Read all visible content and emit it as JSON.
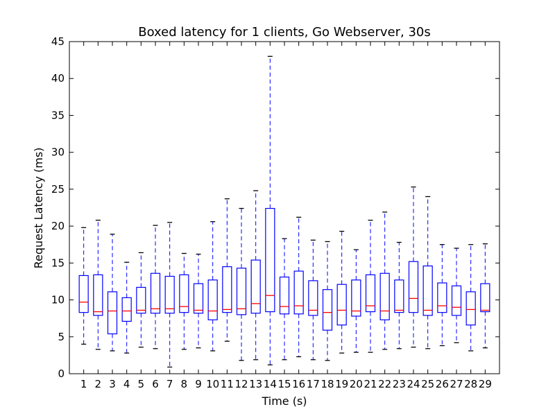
{
  "chart_data": {
    "type": "box",
    "title": "Boxed latency for 1 clients, Go Webserver, 30s",
    "xlabel": "Time (s)",
    "ylabel": "Request Latency (ms)",
    "ylim": [
      0,
      45
    ],
    "yticks": [
      0,
      5,
      10,
      15,
      20,
      25,
      30,
      35,
      40,
      45
    ],
    "grid": false,
    "colors": {
      "box": "#0000ff",
      "whisker": "#0000ff",
      "median": "#ff0000",
      "cap": "#000000",
      "axis": "#000000"
    },
    "categories": [
      "1",
      "2",
      "3",
      "4",
      "5",
      "6",
      "7",
      "8",
      "9",
      "10",
      "11",
      "12",
      "13",
      "14",
      "15",
      "16",
      "17",
      "18",
      "19",
      "20",
      "21",
      "22",
      "23",
      "24",
      "25",
      "26",
      "27",
      "28",
      "29"
    ],
    "boxes": [
      {
        "whislo": 4.0,
        "q1": 8.3,
        "med": 9.7,
        "q3": 13.3,
        "whishi": 19.8
      },
      {
        "whislo": 3.3,
        "q1": 7.9,
        "med": 8.4,
        "q3": 13.4,
        "whishi": 20.8
      },
      {
        "whislo": 3.1,
        "q1": 5.4,
        "med": 8.5,
        "q3": 11.1,
        "whishi": 18.9
      },
      {
        "whislo": 2.8,
        "q1": 7.1,
        "med": 8.5,
        "q3": 10.3,
        "whishi": 15.1
      },
      {
        "whislo": 3.6,
        "q1": 8.2,
        "med": 8.6,
        "q3": 11.7,
        "whishi": 16.4
      },
      {
        "whislo": 3.4,
        "q1": 8.2,
        "med": 8.8,
        "q3": 13.6,
        "whishi": 20.1
      },
      {
        "whislo": 0.9,
        "q1": 8.2,
        "med": 8.8,
        "q3": 13.2,
        "whishi": 20.5
      },
      {
        "whislo": 3.3,
        "q1": 8.3,
        "med": 9.1,
        "q3": 13.4,
        "whishi": 16.3
      },
      {
        "whislo": 3.5,
        "q1": 8.2,
        "med": 8.6,
        "q3": 12.2,
        "whishi": 16.2
      },
      {
        "whislo": 3.1,
        "q1": 7.3,
        "med": 8.5,
        "q3": 12.7,
        "whishi": 20.6
      },
      {
        "whislo": 4.4,
        "q1": 8.3,
        "med": 8.7,
        "q3": 14.5,
        "whishi": 23.7
      },
      {
        "whislo": 1.8,
        "q1": 8.0,
        "med": 8.8,
        "q3": 14.3,
        "whishi": 22.4
      },
      {
        "whislo": 1.9,
        "q1": 8.2,
        "med": 9.5,
        "q3": 15.4,
        "whishi": 24.8
      },
      {
        "whislo": 1.2,
        "q1": 8.4,
        "med": 10.6,
        "q3": 22.4,
        "whishi": 43.0
      },
      {
        "whislo": 1.9,
        "q1": 8.1,
        "med": 9.1,
        "q3": 13.1,
        "whishi": 18.3
      },
      {
        "whislo": 2.3,
        "q1": 8.1,
        "med": 9.2,
        "q3": 13.9,
        "whishi": 21.2
      },
      {
        "whislo": 1.9,
        "q1": 7.9,
        "med": 8.6,
        "q3": 12.6,
        "whishi": 18.1
      },
      {
        "whislo": 1.8,
        "q1": 5.9,
        "med": 8.3,
        "q3": 11.4,
        "whishi": 17.9
      },
      {
        "whislo": 2.8,
        "q1": 6.6,
        "med": 8.6,
        "q3": 12.1,
        "whishi": 19.3
      },
      {
        "whislo": 2.9,
        "q1": 7.8,
        "med": 8.5,
        "q3": 12.7,
        "whishi": 16.8
      },
      {
        "whislo": 2.9,
        "q1": 8.4,
        "med": 9.2,
        "q3": 13.4,
        "whishi": 20.8
      },
      {
        "whislo": 3.3,
        "q1": 7.3,
        "med": 8.5,
        "q3": 13.6,
        "whishi": 21.9
      },
      {
        "whislo": 3.4,
        "q1": 8.3,
        "med": 8.6,
        "q3": 12.7,
        "whishi": 17.8
      },
      {
        "whislo": 3.6,
        "q1": 8.3,
        "med": 10.2,
        "q3": 15.2,
        "whishi": 25.3
      },
      {
        "whislo": 3.4,
        "q1": 7.9,
        "med": 8.6,
        "q3": 14.6,
        "whishi": 24.0
      },
      {
        "whislo": 3.8,
        "q1": 8.3,
        "med": 9.2,
        "q3": 12.3,
        "whishi": 17.5
      },
      {
        "whislo": 4.2,
        "q1": 7.9,
        "med": 9.0,
        "q3": 11.9,
        "whishi": 17.0
      },
      {
        "whislo": 3.1,
        "q1": 6.6,
        "med": 8.7,
        "q3": 11.1,
        "whishi": 17.5
      },
      {
        "whislo": 3.5,
        "q1": 8.4,
        "med": 8.6,
        "q3": 12.2,
        "whishi": 17.6
      }
    ]
  }
}
